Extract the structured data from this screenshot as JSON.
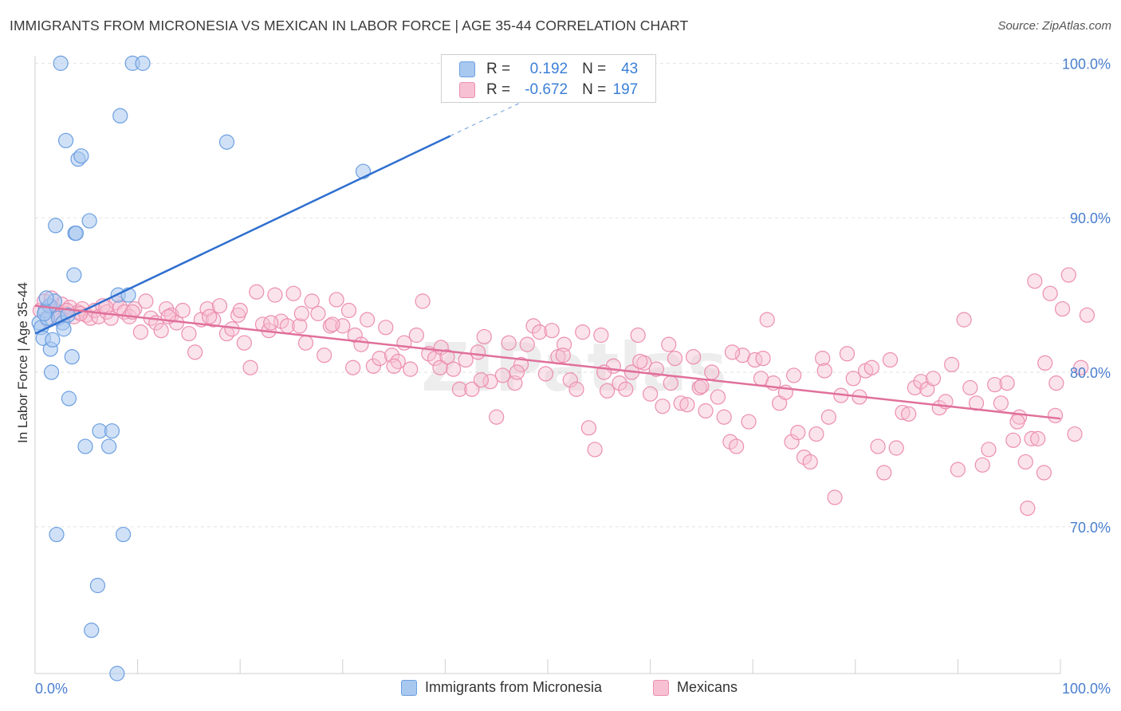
{
  "title": "IMMIGRANTS FROM MICRONESIA VS MEXICAN IN LABOR FORCE | AGE 35-44 CORRELATION CHART",
  "source": "Source: ZipAtlas.com",
  "watermark": "ZIPatlas",
  "colors": {
    "blue_fill": "#a9c8f0",
    "blue_stroke": "#6c9fe0",
    "blue_line": "#2f6fcf",
    "pink_fill": "#f7c0d3",
    "pink_stroke": "#ec8eb0",
    "pink_line": "#e0709a",
    "tick_label": "#4a7fcf",
    "grid": "#e2e2e2"
  },
  "stats": [
    {
      "r_label": "R =",
      "r_value": "0.192",
      "n_label": "N =",
      "n_value": "43"
    },
    {
      "r_label": "R =",
      "r_value": "-0.672",
      "n_label": "N =",
      "n_value": "197"
    }
  ],
  "chart_data": {
    "type": "scatter",
    "title": "IMMIGRANTS FROM MICRONESIA VS MEXICAN IN LABOR FORCE | AGE 35-44 CORRELATION CHART",
    "xlabel": "",
    "ylabel": "In Labor Force | Age 35-44",
    "xlim": [
      0,
      100
    ],
    "ylim": [
      60.5,
      101
    ],
    "x_tick_labels": [
      "0.0%",
      "100.0%"
    ],
    "y_ticks": [
      70,
      80,
      90,
      100
    ],
    "y_tick_labels": [
      "70.0%",
      "80.0%",
      "90.0%",
      "100.0%"
    ],
    "grid": true,
    "legend_position": "bottom",
    "series": [
      {
        "name": "Immigrants from Micronesia",
        "color": "#a9c8f0",
        "points": [
          [
            0.4,
            83.2
          ],
          [
            0.6,
            82.9
          ],
          [
            0.8,
            82.2
          ],
          [
            1.0,
            84.0
          ],
          [
            1.2,
            83.5
          ],
          [
            1.4,
            84.3
          ],
          [
            1.5,
            81.5
          ],
          [
            1.6,
            80.0
          ],
          [
            1.7,
            82.1
          ],
          [
            1.9,
            84.6
          ],
          [
            2.0,
            89.5
          ],
          [
            2.1,
            69.5
          ],
          [
            2.3,
            83.5
          ],
          [
            2.5,
            100.0
          ],
          [
            2.7,
            83.2
          ],
          [
            2.8,
            82.8
          ],
          [
            3.0,
            95.0
          ],
          [
            3.2,
            83.7
          ],
          [
            3.3,
            78.3
          ],
          [
            3.6,
            81.0
          ],
          [
            3.8,
            86.3
          ],
          [
            3.9,
            89.0
          ],
          [
            4.0,
            89.0
          ],
          [
            4.2,
            93.8
          ],
          [
            4.5,
            94.0
          ],
          [
            4.9,
            75.2
          ],
          [
            5.3,
            89.8
          ],
          [
            5.5,
            63.3
          ],
          [
            6.1,
            66.2
          ],
          [
            6.3,
            76.2
          ],
          [
            7.2,
            75.2
          ],
          [
            7.5,
            76.2
          ],
          [
            8.0,
            60.5
          ],
          [
            8.1,
            85.0
          ],
          [
            8.3,
            96.6
          ],
          [
            8.6,
            69.5
          ],
          [
            9.1,
            85.0
          ],
          [
            9.5,
            100.0
          ],
          [
            10.5,
            100.0
          ],
          [
            18.7,
            94.9
          ],
          [
            32.0,
            93.0
          ],
          [
            1.1,
            84.8
          ],
          [
            0.9,
            83.8
          ]
        ]
      },
      {
        "name": "Mexicans",
        "color": "#f7c0d3",
        "points": [
          [
            0.5,
            84.0
          ],
          [
            0.9,
            84.6
          ],
          [
            1.2,
            83.4
          ],
          [
            1.5,
            84.3
          ],
          [
            1.8,
            84.1
          ],
          [
            2.2,
            83.9
          ],
          [
            2.6,
            84.4
          ],
          [
            3.0,
            83.8
          ],
          [
            3.4,
            84.2
          ],
          [
            3.8,
            83.6
          ],
          [
            4.2,
            83.9
          ],
          [
            4.6,
            84.1
          ],
          [
            5.0,
            83.7
          ],
          [
            5.4,
            83.5
          ],
          [
            5.8,
            84.0
          ],
          [
            6.2,
            83.6
          ],
          [
            6.6,
            84.3
          ],
          [
            7.0,
            83.9
          ],
          [
            7.4,
            83.5
          ],
          [
            7.9,
            84.5
          ],
          [
            8.3,
            84.2
          ],
          [
            8.7,
            83.9
          ],
          [
            9.2,
            83.6
          ],
          [
            9.7,
            84.1
          ],
          [
            10.3,
            82.6
          ],
          [
            10.8,
            84.6
          ],
          [
            11.3,
            83.5
          ],
          [
            11.8,
            83.2
          ],
          [
            12.3,
            82.7
          ],
          [
            12.8,
            84.1
          ],
          [
            13.3,
            83.7
          ],
          [
            13.8,
            83.2
          ],
          [
            14.4,
            84.0
          ],
          [
            15.0,
            82.5
          ],
          [
            15.6,
            81.3
          ],
          [
            16.2,
            83.4
          ],
          [
            16.8,
            84.1
          ],
          [
            17.4,
            83.4
          ],
          [
            18.0,
            84.3
          ],
          [
            18.7,
            82.5
          ],
          [
            19.2,
            82.8
          ],
          [
            19.8,
            83.7
          ],
          [
            20.4,
            81.9
          ],
          [
            21.0,
            80.3
          ],
          [
            21.6,
            85.2
          ],
          [
            22.2,
            83.1
          ],
          [
            22.8,
            82.7
          ],
          [
            23.4,
            85.0
          ],
          [
            24.0,
            83.3
          ],
          [
            24.6,
            83.0
          ],
          [
            25.2,
            85.1
          ],
          [
            25.8,
            83.0
          ],
          [
            26.4,
            81.9
          ],
          [
            27.0,
            84.6
          ],
          [
            27.6,
            83.8
          ],
          [
            28.2,
            81.1
          ],
          [
            28.8,
            83.0
          ],
          [
            29.4,
            84.7
          ],
          [
            30.0,
            83.0
          ],
          [
            30.6,
            84.0
          ],
          [
            31.2,
            82.4
          ],
          [
            31.8,
            81.8
          ],
          [
            32.4,
            83.4
          ],
          [
            33.0,
            80.4
          ],
          [
            33.6,
            80.9
          ],
          [
            34.2,
            82.9
          ],
          [
            34.8,
            81.1
          ],
          [
            35.4,
            80.7
          ],
          [
            36.0,
            81.9
          ],
          [
            36.6,
            80.2
          ],
          [
            37.2,
            82.4
          ],
          [
            37.8,
            84.6
          ],
          [
            38.4,
            81.2
          ],
          [
            39.0,
            80.9
          ],
          [
            39.6,
            81.6
          ],
          [
            40.2,
            81.0
          ],
          [
            40.8,
            80.2
          ],
          [
            41.4,
            78.9
          ],
          [
            42.0,
            80.8
          ],
          [
            42.6,
            78.9
          ],
          [
            43.2,
            81.3
          ],
          [
            43.8,
            82.3
          ],
          [
            44.4,
            79.4
          ],
          [
            45.0,
            77.1
          ],
          [
            45.6,
            79.8
          ],
          [
            46.2,
            81.9
          ],
          [
            46.8,
            79.3
          ],
          [
            47.4,
            80.5
          ],
          [
            48.0,
            81.8
          ],
          [
            48.6,
            83.0
          ],
          [
            49.2,
            82.6
          ],
          [
            49.8,
            79.9
          ],
          [
            50.4,
            82.7
          ],
          [
            51.0,
            81.0
          ],
          [
            51.6,
            81.8
          ],
          [
            52.2,
            79.5
          ],
          [
            52.8,
            78.9
          ],
          [
            53.4,
            82.6
          ],
          [
            54.0,
            76.4
          ],
          [
            54.6,
            75.0
          ],
          [
            55.2,
            82.4
          ],
          [
            55.8,
            78.8
          ],
          [
            56.4,
            80.4
          ],
          [
            57.0,
            79.3
          ],
          [
            57.6,
            78.9
          ],
          [
            58.2,
            80.0
          ],
          [
            58.8,
            82.4
          ],
          [
            59.4,
            80.6
          ],
          [
            60.0,
            78.6
          ],
          [
            60.6,
            80.2
          ],
          [
            61.2,
            77.8
          ],
          [
            61.8,
            81.8
          ],
          [
            62.4,
            80.9
          ],
          [
            63.0,
            78.0
          ],
          [
            63.6,
            77.9
          ],
          [
            64.2,
            81.0
          ],
          [
            64.8,
            79.0
          ],
          [
            65.4,
            77.5
          ],
          [
            66.0,
            80.0
          ],
          [
            66.6,
            78.4
          ],
          [
            67.2,
            77.1
          ],
          [
            67.8,
            75.5
          ],
          [
            68.4,
            75.2
          ],
          [
            69.0,
            81.1
          ],
          [
            69.6,
            76.8
          ],
          [
            70.2,
            80.8
          ],
          [
            70.8,
            79.6
          ],
          [
            71.4,
            83.4
          ],
          [
            72.0,
            79.3
          ],
          [
            72.6,
            78.0
          ],
          [
            73.2,
            78.7
          ],
          [
            73.8,
            75.5
          ],
          [
            74.4,
            76.1
          ],
          [
            75.0,
            74.5
          ],
          [
            75.6,
            74.2
          ],
          [
            76.2,
            76.0
          ],
          [
            76.8,
            80.9
          ],
          [
            77.4,
            77.1
          ],
          [
            78.0,
            71.9
          ],
          [
            78.6,
            78.5
          ],
          [
            79.2,
            81.2
          ],
          [
            79.8,
            79.6
          ],
          [
            80.4,
            78.4
          ],
          [
            81.0,
            80.1
          ],
          [
            81.6,
            80.3
          ],
          [
            82.2,
            75.2
          ],
          [
            82.8,
            73.5
          ],
          [
            83.4,
            80.8
          ],
          [
            84.0,
            75.1
          ],
          [
            84.6,
            77.4
          ],
          [
            85.2,
            77.3
          ],
          [
            85.8,
            79.0
          ],
          [
            86.4,
            79.4
          ],
          [
            87.0,
            78.9
          ],
          [
            87.6,
            79.6
          ],
          [
            88.2,
            77.7
          ],
          [
            88.8,
            78.1
          ],
          [
            89.4,
            80.5
          ],
          [
            90.0,
            73.7
          ],
          [
            90.6,
            83.4
          ],
          [
            91.2,
            79.0
          ],
          [
            91.8,
            78.0
          ],
          [
            92.4,
            74.0
          ],
          [
            93.0,
            75.0
          ],
          [
            93.6,
            79.2
          ],
          [
            94.2,
            78.0
          ],
          [
            94.8,
            79.3
          ],
          [
            95.4,
            75.6
          ],
          [
            96.0,
            77.1
          ],
          [
            96.6,
            74.2
          ],
          [
            97.2,
            75.7
          ],
          [
            97.8,
            75.7
          ],
          [
            98.4,
            73.5
          ],
          [
            99.0,
            85.1
          ],
          [
            99.6,
            79.3
          ],
          [
            100.2,
            84.1
          ],
          [
            100.8,
            86.3
          ],
          [
            101.4,
            76.0
          ],
          [
            102.0,
            80.3
          ],
          [
            102.6,
            83.7
          ],
          [
            97.5,
            85.9
          ],
          [
            98.5,
            80.6
          ],
          [
            99.5,
            77.2
          ],
          [
            95.8,
            76.8
          ],
          [
            96.8,
            71.2
          ],
          [
            1.6,
            84.8
          ],
          [
            2.4,
            83.6
          ],
          [
            3.1,
            84.0
          ],
          [
            4.4,
            83.8
          ],
          [
            6.9,
            84.2
          ],
          [
            9.5,
            83.9
          ],
          [
            13.0,
            83.6
          ],
          [
            17.0,
            83.6
          ],
          [
            20.0,
            84.0
          ],
          [
            23.0,
            83.2
          ],
          [
            26.0,
            83.8
          ],
          [
            29.0,
            83.1
          ],
          [
            31.0,
            80.3
          ],
          [
            35.0,
            80.4
          ],
          [
            39.5,
            80.3
          ],
          [
            43.5,
            79.5
          ],
          [
            47.0,
            80.0
          ],
          [
            51.5,
            81.1
          ],
          [
            55.5,
            80.0
          ],
          [
            59.0,
            80.7
          ],
          [
            62.0,
            79.3
          ],
          [
            65.0,
            79.1
          ],
          [
            68.0,
            81.3
          ],
          [
            71.0,
            80.9
          ],
          [
            74.0,
            79.8
          ],
          [
            77.0,
            80.1
          ]
        ]
      }
    ],
    "trend_lines": [
      {
        "series": "Immigrants from Micronesia",
        "from": [
          0,
          82.5
        ],
        "to": [
          40.5,
          95.3
        ],
        "dashed_to": [
          47.5,
          97.5
        ]
      },
      {
        "series": "Mexicans",
        "from": [
          0,
          84.3
        ],
        "to": [
          100,
          77.0
        ]
      }
    ]
  }
}
